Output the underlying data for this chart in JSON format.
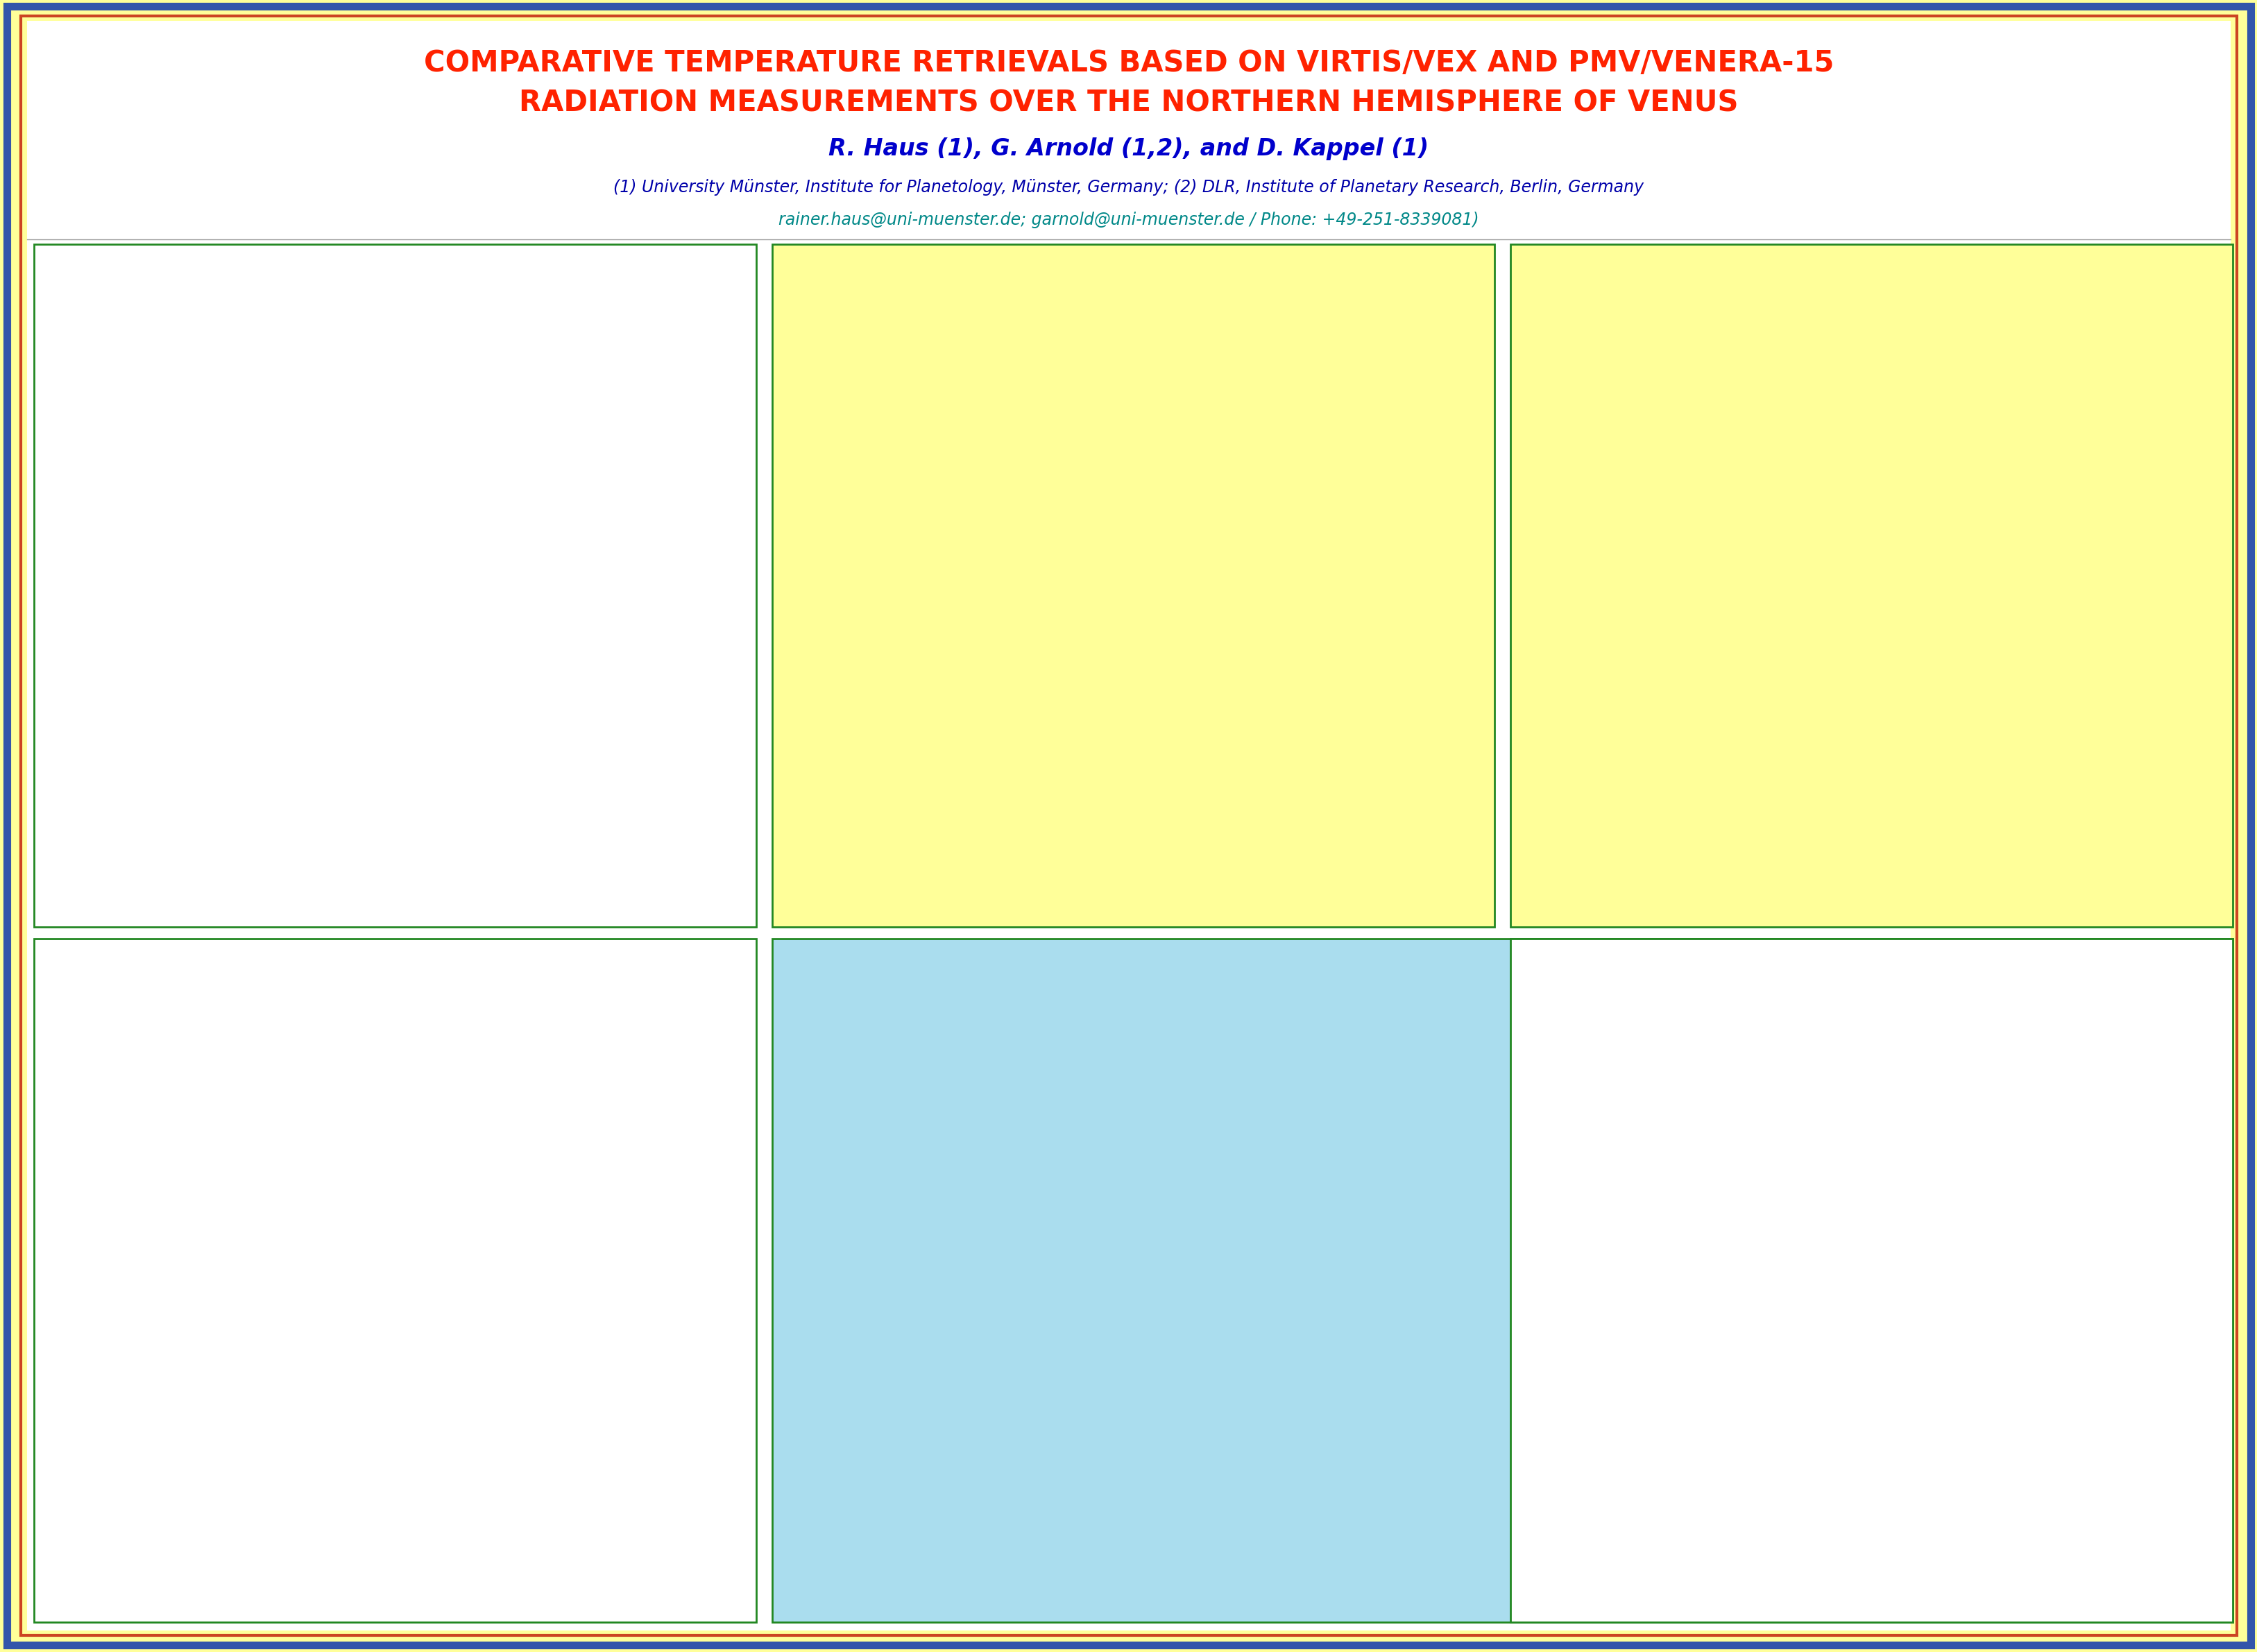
{
  "title_line1": "COMPARATIVE TEMPERATURE RETRIEVALS BASED ON VIRTIS/VEX AND PMV/VENERA-15",
  "title_line2": "RADIATION MEASUREMENTS OVER THE NORTHERN HEMISPHERE OF VENUS",
  "title_color": "#FF2200",
  "author_line": "R. Haus (1), G. Arnold (1,2), and D. Kappel (1)",
  "author_color": "#0000CC",
  "affil_line": "(1) University Münster, Institute for Planetology, Münster, Germany; (2) DLR, Institute of Planetary Research, Berlin, Germany",
  "affil_color": "#0000AA",
  "contact_line": "rainer.haus@uni-muenster.de; garnold@uni-muenster.de / Phone: +49-251-8339081)",
  "contact_color": "#008888",
  "bg_outer": "#FFFF99",
  "bg_inner": "#FFFFFF",
  "border_blue": "#3355AA",
  "border_red": "#CC4422",
  "panel_border_green": "#228822",
  "scope_method_bg": "#880088",
  "scope_method_text": "#FFFFFF",
  "motivation_bg": "#FFFF99",
  "motivation_text": "#FF2200",
  "panel4_bg": "#AADDEE",
  "panel4_border": "#AADDEE",
  "panel3_bg": "#FFFF99",
  "panel5_bg": "#FFFF99",
  "step_box_bg": "#CCFFCC",
  "step_box_border": "#228822",
  "ref_box_bg_vira": "#88CCDD",
  "ref_box_bg_vera": "#88CCDD",
  "ref_box_bg_info": "#88CCDD",
  "nocorr_bg": "#FF8888",
  "legend_box_bg": "#CCFFCC",
  "sel_box_bg": "#00DDDD",
  "ref_box_text_bg": "#88BB88",
  "panel2_plot_bg": "#FFFF99"
}
